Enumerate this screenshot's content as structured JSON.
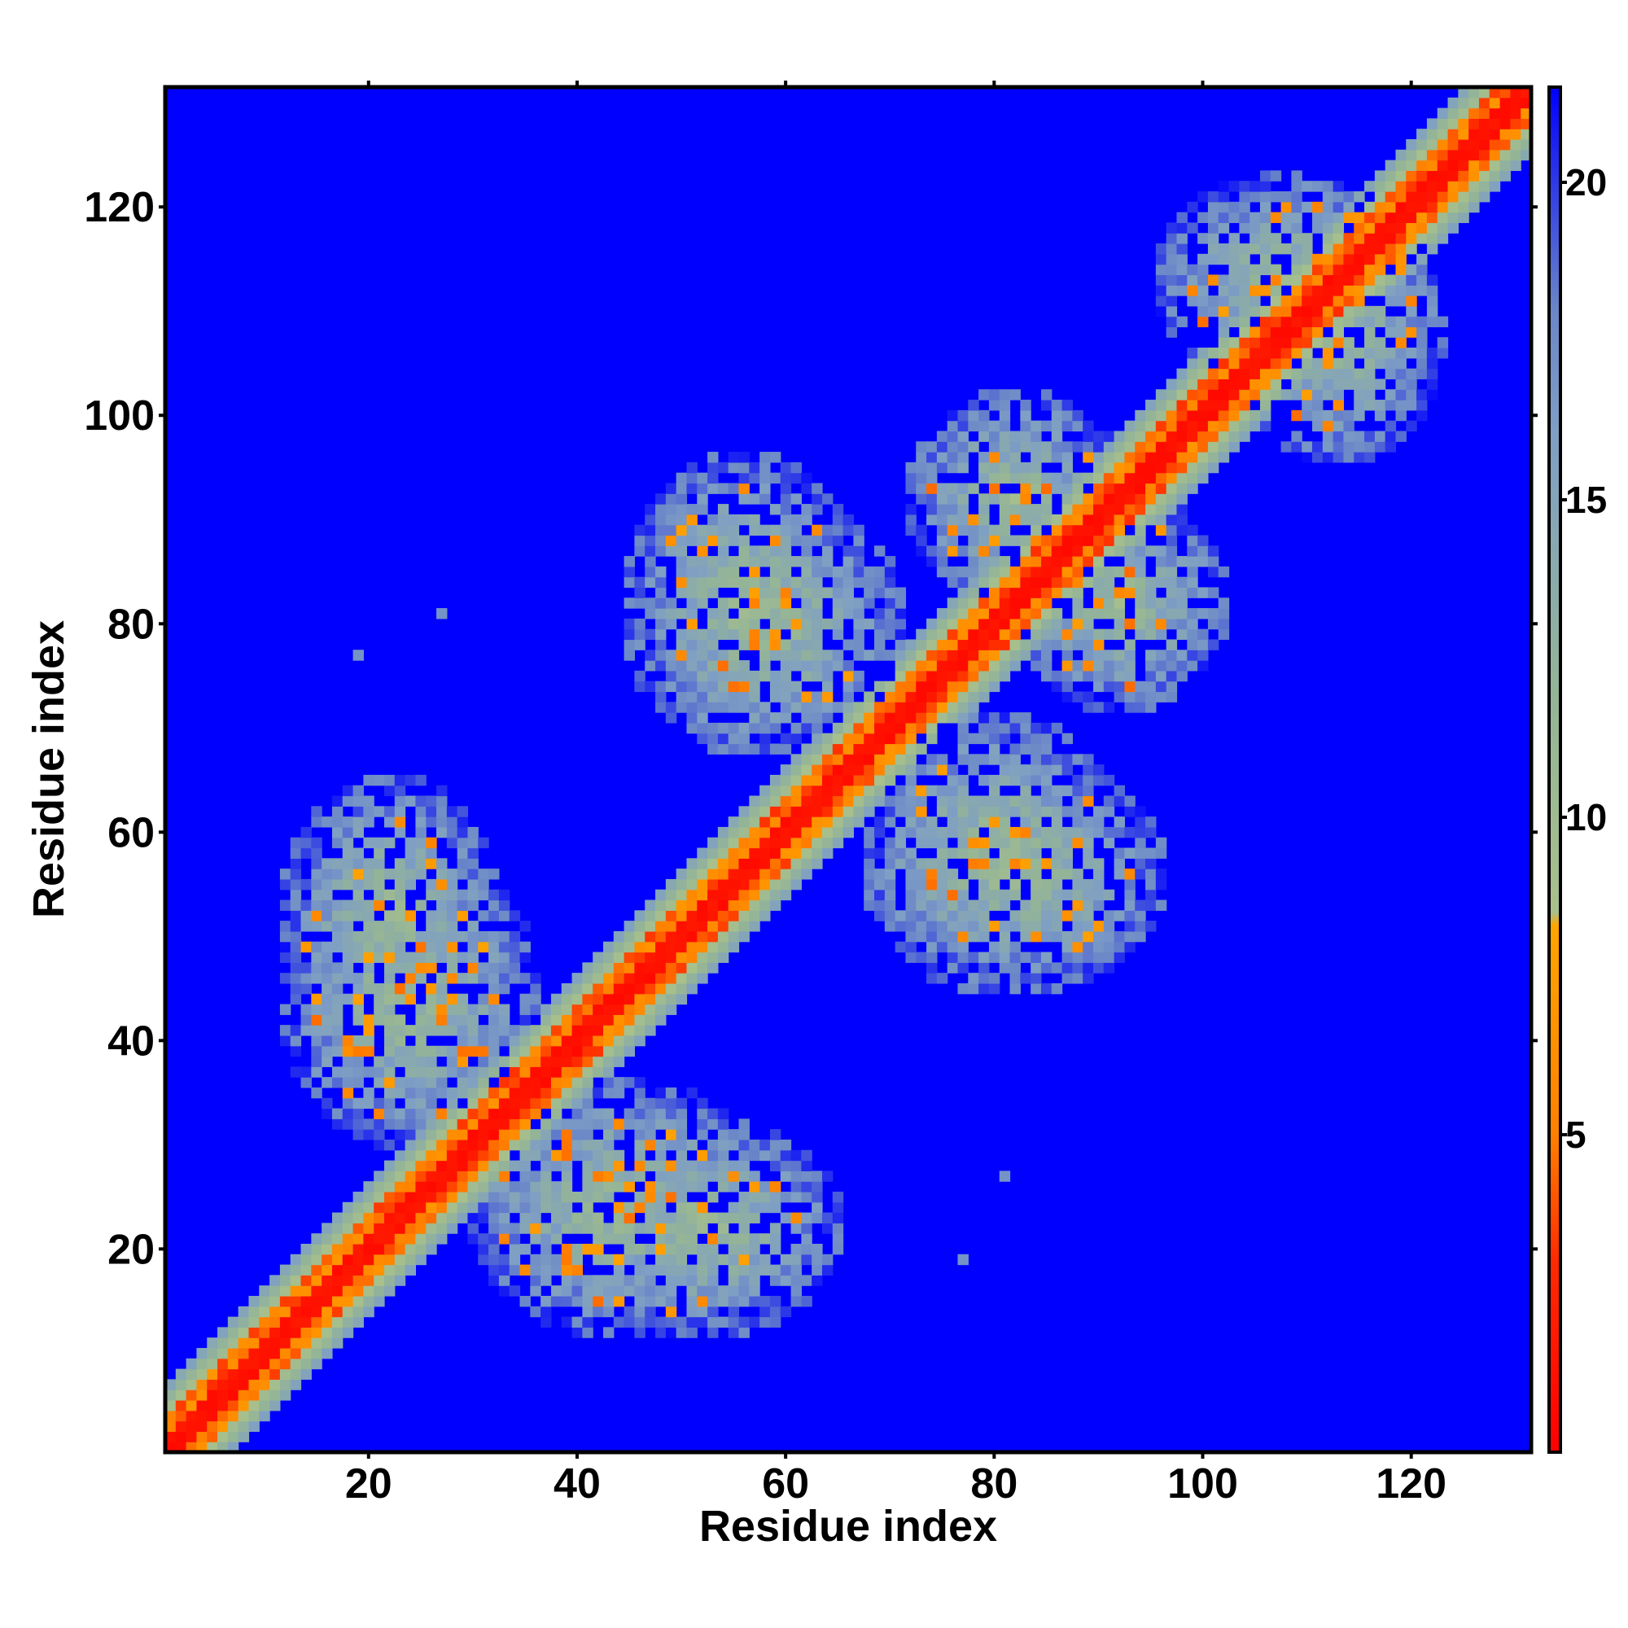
{
  "chart_data": {
    "type": "heatmap",
    "title": "",
    "xlabel": "Residue index",
    "ylabel": "Residue index",
    "n_residues": 131,
    "xlim": [
      0.5,
      131.5
    ],
    "ylim": [
      0.5,
      131.5
    ],
    "x_ticks": [
      20,
      40,
      60,
      80,
      100,
      120
    ],
    "y_ticks": [
      20,
      40,
      60,
      80,
      100,
      120
    ],
    "colorbar": {
      "range": [
        0,
        21.5
      ],
      "ticks": [
        5,
        10,
        15,
        20
      ],
      "stops": [
        {
          "value": 0,
          "color": "#ff0000"
        },
        {
          "value": 3,
          "color": "#ff2a00"
        },
        {
          "value": 5,
          "color": "#ff8000"
        },
        {
          "value": 8.3,
          "color": "#ffa500"
        },
        {
          "value": 8.5,
          "color": "#a8c08c"
        },
        {
          "value": 12,
          "color": "#94b498"
        },
        {
          "value": 16,
          "color": "#7f9fc4"
        },
        {
          "value": 18,
          "color": "#6a86c8"
        },
        {
          "value": 21.5,
          "color": "#0000ff"
        }
      ]
    },
    "background_value": 21.5,
    "diagonal_band": {
      "center": 0,
      "width_residues": 8
    },
    "contact_clusters": [
      {
        "x_center": 24,
        "y_center": 44,
        "x_halfwidth": 12,
        "y_halfwidth": 14
      },
      {
        "x_center": 52,
        "y_center": 22,
        "x_halfwidth": 13,
        "y_halfwidth": 10
      },
      {
        "x_center": 58,
        "y_center": 80,
        "x_halfwidth": 13,
        "y_halfwidth": 12
      },
      {
        "x_center": 82,
        "y_center": 56,
        "x_halfwidth": 14,
        "y_halfwidth": 11
      },
      {
        "x_center": 85,
        "y_center": 88,
        "x_halfwidth": 10,
        "y_halfwidth": 12
      },
      {
        "x_center": 92,
        "y_center": 82,
        "x_halfwidth": 10,
        "y_halfwidth": 10
      },
      {
        "x_center": 113,
        "y_center": 108,
        "x_halfwidth": 10,
        "y_halfwidth": 12
      }
    ],
    "isolated_contacts": [
      {
        "x": 19,
        "y": 77
      },
      {
        "x": 27,
        "y": 81
      },
      {
        "x": 81,
        "y": 27
      },
      {
        "x": 77,
        "y": 19
      }
    ],
    "grid": false
  }
}
